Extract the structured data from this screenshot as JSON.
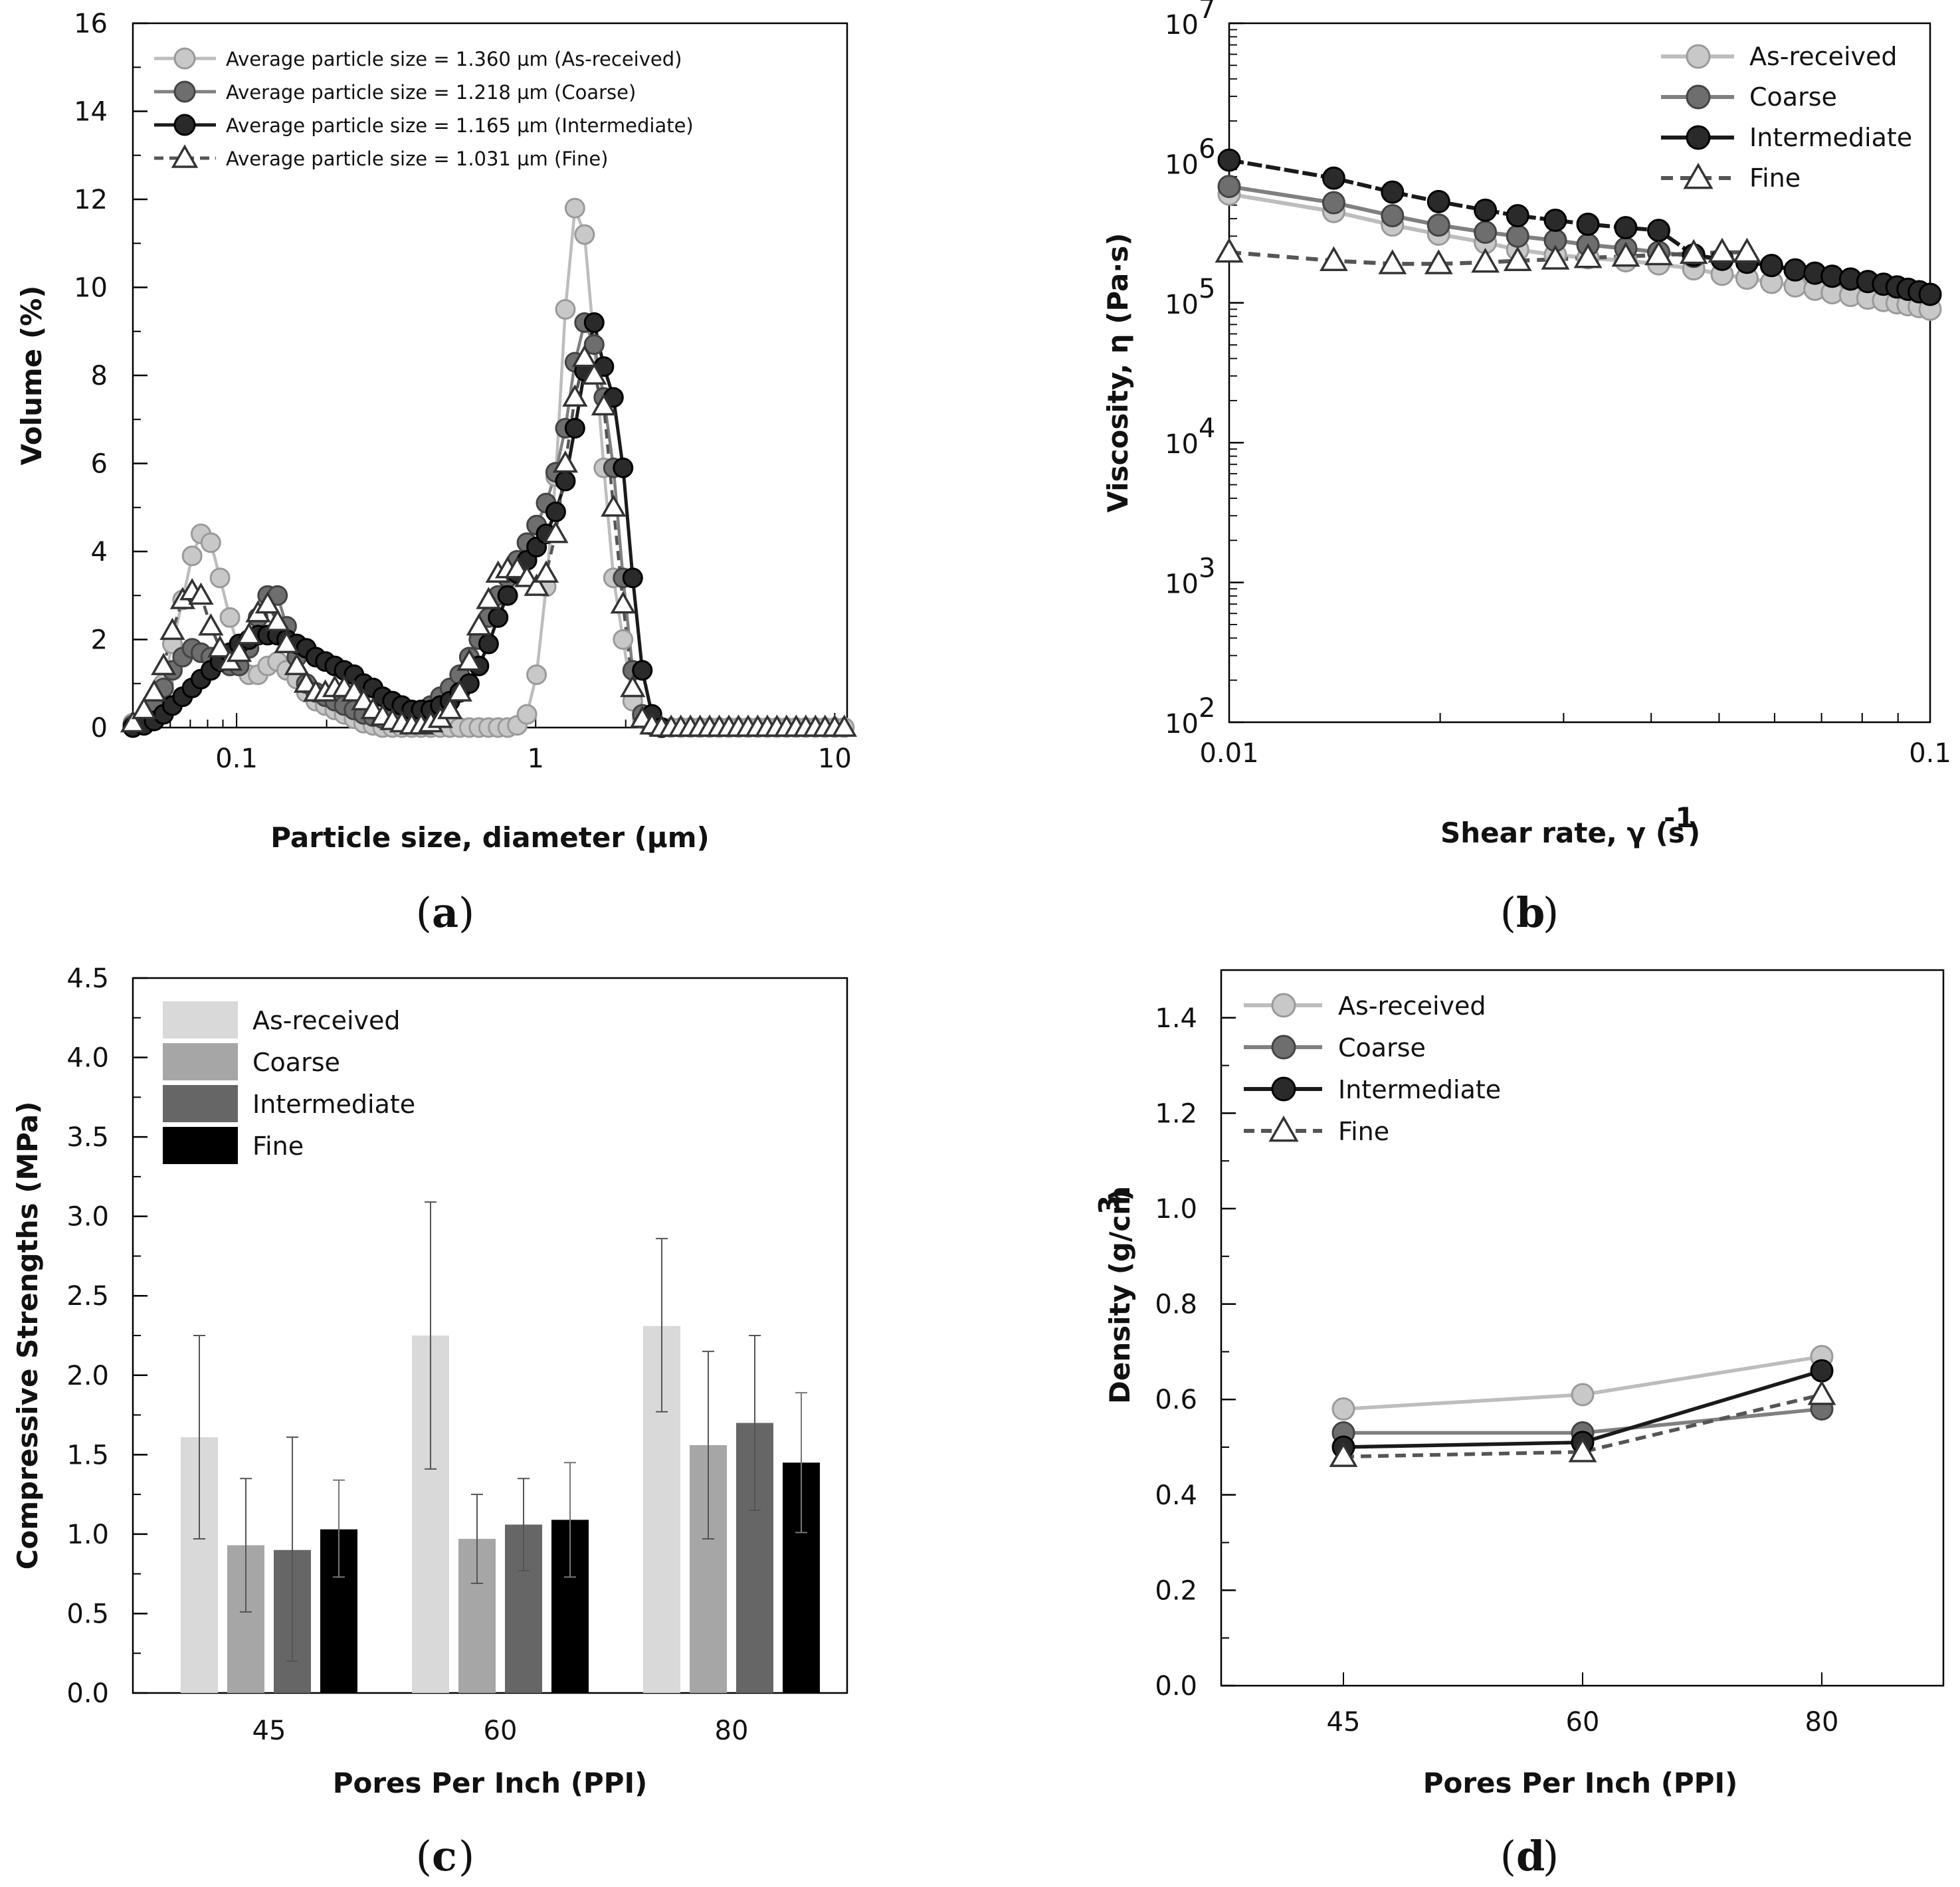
{
  "colors": {
    "as_received": "#bdbdbd",
    "coarse": "#808080",
    "intermediate": "#1a1a1a",
    "fine": "#555555",
    "bar_as_received": "#d9d9d9",
    "bar_coarse": "#a6a6a6",
    "bar_intermediate": "#666666",
    "bar_fine": "#000000"
  },
  "chart_data": [
    {
      "id": "a",
      "panel_label": "a",
      "type": "line",
      "xlabel": "Particle size, diameter (µm)",
      "ylabel": "Volume (%)",
      "x_scale": "log",
      "xlim": [
        0.045,
        11
      ],
      "ylim": [
        0,
        16
      ],
      "x_ticks": [
        0.1,
        1,
        10
      ],
      "x_tick_labels": [
        "0.1",
        "1",
        "10"
      ],
      "y_ticks": [
        0,
        2,
        4,
        6,
        8,
        10,
        12,
        14,
        16
      ],
      "y_tick_labels": [
        "0",
        "2",
        "4",
        "6",
        "8",
        "10",
        "12",
        "14",
        "16"
      ],
      "legend_position": "top-left",
      "grid": false,
      "series": [
        {
          "name": "Average particle size = 1.360 µm (As-received)",
          "style": "as_received",
          "marker": "circle",
          "dash": false,
          "x": [
            0.045,
            0.049,
            0.053,
            0.057,
            0.061,
            0.066,
            0.071,
            0.076,
            0.082,
            0.088,
            0.095,
            0.102,
            0.11,
            0.118,
            0.127,
            0.137,
            0.147,
            0.159,
            0.171,
            0.184,
            0.198,
            0.213,
            0.229,
            0.247,
            0.266,
            0.286,
            0.308,
            0.332,
            0.357,
            0.385,
            0.414,
            0.446,
            0.48,
            0.517,
            0.557,
            0.6,
            0.646,
            0.696,
            0.749,
            0.806,
            0.868,
            0.935,
            1.007,
            1.084,
            1.167,
            1.257,
            1.353,
            1.457,
            1.569,
            1.69,
            1.82,
            1.96,
            2.111,
            2.273,
            2.448,
            2.636,
            2.838,
            3.057,
            3.292,
            3.545,
            3.817,
            4.111,
            4.427,
            4.767,
            5.133,
            5.528,
            5.953,
            6.41,
            6.903,
            7.434,
            8.005,
            8.621,
            9.283,
            9.997,
            10.766
          ],
          "y": [
            0.1,
            0.2,
            0.5,
            1.0,
            1.9,
            2.9,
            3.9,
            4.4,
            4.2,
            3.4,
            2.5,
            1.7,
            1.2,
            1.2,
            1.4,
            1.5,
            1.3,
            1.1,
            0.8,
            0.6,
            0.5,
            0.4,
            0.3,
            0.2,
            0.1,
            0.05,
            0,
            0,
            0,
            0,
            0,
            0,
            0,
            0,
            0,
            0,
            0,
            0,
            0,
            0,
            0.05,
            0.3,
            1.2,
            3.2,
            5.7,
            9.5,
            11.8,
            11.2,
            8.7,
            5.9,
            3.4,
            2.0,
            0.6,
            0.2,
            0.05,
            0,
            0,
            0,
            0,
            0,
            0,
            0,
            0,
            0,
            0,
            0,
            0,
            0,
            0,
            0,
            0,
            0,
            0,
            0,
            0
          ]
        },
        {
          "name": "Average particle size =  1.218 µm (Coarse)",
          "style": "coarse",
          "marker": "circle",
          "dash": false,
          "x": [
            0.045,
            0.049,
            0.053,
            0.057,
            0.061,
            0.066,
            0.071,
            0.076,
            0.082,
            0.088,
            0.095,
            0.102,
            0.11,
            0.118,
            0.127,
            0.137,
            0.147,
            0.159,
            0.171,
            0.184,
            0.198,
            0.213,
            0.229,
            0.247,
            0.266,
            0.286,
            0.308,
            0.332,
            0.357,
            0.385,
            0.414,
            0.446,
            0.48,
            0.517,
            0.557,
            0.6,
            0.646,
            0.696,
            0.749,
            0.806,
            0.868,
            0.935,
            1.007,
            1.084,
            1.167,
            1.257,
            1.353,
            1.457,
            1.569,
            1.69,
            1.82,
            1.96,
            2.111,
            2.273,
            2.448,
            2.636
          ],
          "y": [
            0.05,
            0.2,
            0.5,
            0.9,
            1.3,
            1.6,
            1.8,
            1.7,
            1.6,
            1.5,
            1.4,
            1.4,
            1.8,
            2.5,
            3.0,
            3.0,
            2.3,
            1.6,
            1.0,
            0.8,
            0.7,
            0.6,
            0.5,
            0.4,
            0.3,
            0.25,
            0.2,
            0.2,
            0.25,
            0.3,
            0.4,
            0.5,
            0.7,
            0.9,
            1.2,
            1.6,
            2.0,
            2.5,
            3.0,
            3.4,
            3.8,
            4.2,
            4.6,
            5.1,
            5.8,
            6.8,
            8.3,
            9.2,
            8.7,
            7.5,
            5.9,
            3.4,
            1.3,
            0.3,
            0.05,
            0
          ]
        },
        {
          "name": "Average particle size = 1.165 µm (Intermediate)",
          "style": "intermediate",
          "marker": "circle",
          "dash": false,
          "x": [
            0.045,
            0.049,
            0.053,
            0.057,
            0.061,
            0.066,
            0.071,
            0.076,
            0.082,
            0.088,
            0.095,
            0.102,
            0.11,
            0.118,
            0.127,
            0.137,
            0.147,
            0.159,
            0.171,
            0.184,
            0.198,
            0.213,
            0.229,
            0.247,
            0.266,
            0.286,
            0.308,
            0.332,
            0.357,
            0.385,
            0.414,
            0.446,
            0.48,
            0.517,
            0.557,
            0.6,
            0.646,
            0.696,
            0.749,
            0.806,
            0.868,
            0.935,
            1.007,
            1.084,
            1.167,
            1.257,
            1.353,
            1.457,
            1.569,
            1.69,
            1.82,
            1.96,
            2.111,
            2.273,
            2.448,
            2.636
          ],
          "y": [
            0,
            0.05,
            0.15,
            0.3,
            0.5,
            0.7,
            0.9,
            1.1,
            1.3,
            1.5,
            1.7,
            1.9,
            2.0,
            2.1,
            2.1,
            2.1,
            2.0,
            1.9,
            1.8,
            1.6,
            1.5,
            1.4,
            1.3,
            1.2,
            1.0,
            0.9,
            0.7,
            0.6,
            0.5,
            0.4,
            0.4,
            0.4,
            0.5,
            0.6,
            0.8,
            1.0,
            1.4,
            1.9,
            2.5,
            3.0,
            3.5,
            3.8,
            4.1,
            4.4,
            4.9,
            5.6,
            6.8,
            8.1,
            9.2,
            8.2,
            7.5,
            5.9,
            3.4,
            1.3,
            0.3,
            0
          ]
        },
        {
          "name": "Average particle size = 1.031 µm (Fine)",
          "style": "fine",
          "marker": "triangle",
          "dash": true,
          "x": [
            0.045,
            0.049,
            0.053,
            0.057,
            0.061,
            0.066,
            0.071,
            0.076,
            0.082,
            0.088,
            0.095,
            0.102,
            0.11,
            0.118,
            0.127,
            0.137,
            0.147,
            0.159,
            0.171,
            0.184,
            0.198,
            0.213,
            0.229,
            0.247,
            0.266,
            0.286,
            0.308,
            0.332,
            0.357,
            0.385,
            0.414,
            0.446,
            0.48,
            0.517,
            0.557,
            0.6,
            0.646,
            0.696,
            0.749,
            0.806,
            0.868,
            0.935,
            1.007,
            1.084,
            1.167,
            1.257,
            1.353,
            1.457,
            1.569,
            1.69,
            1.82,
            1.96,
            2.111,
            2.273,
            2.448,
            2.636,
            2.838,
            3.057,
            3.292,
            3.545,
            3.817,
            4.111,
            4.427,
            4.767,
            5.133,
            5.528,
            5.953,
            6.41,
            6.903,
            7.434,
            8.005,
            8.621,
            9.283,
            9.997,
            10.766
          ],
          "y": [
            0.1,
            0.4,
            0.8,
            1.4,
            2.2,
            2.9,
            3.1,
            3.0,
            2.3,
            1.8,
            1.5,
            1.7,
            2.1,
            2.6,
            2.8,
            2.4,
            1.9,
            1.4,
            1.0,
            0.8,
            0.8,
            0.9,
            0.9,
            0.8,
            0.6,
            0.4,
            0.25,
            0.15,
            0.1,
            0.05,
            0.05,
            0.1,
            0.2,
            0.4,
            0.8,
            1.5,
            2.3,
            2.9,
            3.5,
            3.6,
            3.6,
            3.4,
            3.2,
            3.5,
            4.4,
            6.0,
            7.5,
            8.4,
            8.0,
            7.3,
            5.0,
            2.8,
            0.9,
            0.2,
            0.05,
            0,
            0,
            0,
            0,
            0,
            0,
            0,
            0,
            0,
            0,
            0,
            0,
            0,
            0,
            0,
            0,
            0,
            0,
            0,
            0
          ]
        }
      ]
    },
    {
      "id": "b",
      "panel_label": "b",
      "type": "line",
      "xlabel": "Shear rate, γ (s",
      "xlabel_sup": "-1",
      "xlabel_end": ")",
      "ylabel": "Viscosity, η (Pa·s)",
      "x_scale": "log",
      "y_scale": "log",
      "xlim": [
        0.01,
        0.1
      ],
      "ylim": [
        100,
        10000000
      ],
      "x_ticks": [
        0.01,
        0.1
      ],
      "x_tick_labels": [
        "0.01",
        "0.1"
      ],
      "y_ticks": [
        100,
        1000,
        10000,
        100000,
        1000000,
        10000000
      ],
      "y_tick_base": "10",
      "y_tick_exps": [
        "2",
        "3",
        "4",
        "5",
        "6",
        "7"
      ],
      "legend_position": "top-right",
      "grid": false,
      "series": [
        {
          "name": "As-received",
          "style": "as_received",
          "marker": "circle",
          "dash": false,
          "x": [
            0.01,
            0.0141,
            0.0171,
            0.0199,
            0.0232,
            0.0258,
            0.0292,
            0.0325,
            0.0368,
            0.041,
            0.046,
            0.0505,
            0.0548,
            0.0594,
            0.0642,
            0.0685,
            0.0725,
            0.077,
            0.0815,
            0.0858,
            0.0897,
            0.093,
            0.0965,
            0.1
          ],
          "y": [
            600000,
            450000,
            360000,
            310000,
            270000,
            240000,
            220000,
            210000,
            200000,
            190000,
            175000,
            160000,
            150000,
            140000,
            132000,
            125000,
            118000,
            113000,
            108000,
            104000,
            100000,
            97000,
            94000,
            90000
          ]
        },
        {
          "name": "Coarse",
          "style": "coarse",
          "marker": "circle",
          "dash": false,
          "x": [
            0.01,
            0.0141,
            0.0171,
            0.0199,
            0.0232,
            0.0258,
            0.0292,
            0.0325,
            0.0368,
            0.041,
            0.046,
            0.0505,
            0.0548,
            0.0594,
            0.0642,
            0.0685,
            0.0725,
            0.077,
            0.0815,
            0.0858,
            0.0897,
            0.093,
            0.0965,
            0.1
          ],
          "y": [
            680000,
            520000,
            420000,
            360000,
            320000,
            300000,
            280000,
            260000,
            245000,
            230000,
            215000,
            205000,
            195000,
            185000,
            172000,
            163000,
            155000,
            148000,
            142000,
            136000,
            130000,
            125000,
            120000,
            115000
          ]
        },
        {
          "name": "Intermediate",
          "style": "intermediate",
          "marker": "circle",
          "dash": false,
          "x": [
            0.01,
            0.0141,
            0.0171,
            0.0199,
            0.0232,
            0.0258,
            0.0292,
            0.0325,
            0.0368,
            0.041,
            0.046,
            0.0505,
            0.0548,
            0.0594,
            0.0642,
            0.0685,
            0.0725,
            0.077,
            0.0815,
            0.0858,
            0.0897,
            0.093,
            0.0965,
            0.1
          ],
          "y": [
            1050000,
            780000,
            620000,
            530000,
            460000,
            420000,
            390000,
            365000,
            345000,
            330000,
            220000,
            205000,
            195000,
            185000,
            172000,
            163000,
            155000,
            148000,
            142000,
            136000,
            130000,
            125000,
            120000,
            115000
          ]
        },
        {
          "name": "Fine",
          "style": "fine",
          "marker": "triangle",
          "dash": true,
          "x": [
            0.01,
            0.0141,
            0.0171,
            0.0199,
            0.0232,
            0.0258,
            0.0292,
            0.0325,
            0.0368,
            0.041,
            0.046,
            0.0505,
            0.0548
          ],
          "y": [
            230000,
            200000,
            190000,
            190000,
            195000,
            200000,
            205000,
            210000,
            215000,
            220000,
            225000,
            230000,
            230000
          ]
        }
      ]
    },
    {
      "id": "c",
      "panel_label": "c",
      "type": "bar",
      "xlabel": "Pores Per Inch (PPI)",
      "ylabel": "Compressive Strengths (MPa)",
      "categories": [
        "45",
        "60",
        "80"
      ],
      "ylim": [
        0,
        4.5
      ],
      "y_ticks": [
        0,
        0.5,
        1.0,
        1.5,
        2.0,
        2.5,
        3.0,
        3.5,
        4.0,
        4.5
      ],
      "y_tick_labels": [
        "0.0",
        "0.5",
        "1.0",
        "1.5",
        "2.0",
        "2.5",
        "3.0",
        "3.5",
        "4.0",
        "4.5"
      ],
      "legend_position": "top-left",
      "grid": false,
      "series": [
        {
          "name": "As-received",
          "style": "bar_as_received",
          "values": [
            1.61,
            2.25,
            2.31
          ],
          "err_low": [
            0.97,
            1.41,
            1.77
          ],
          "err_high": [
            2.25,
            3.09,
            2.86
          ]
        },
        {
          "name": "Coarse",
          "style": "bar_coarse",
          "values": [
            0.93,
            0.97,
            1.56
          ],
          "err_low": [
            0.51,
            0.69,
            0.97
          ],
          "err_high": [
            1.35,
            1.25,
            2.15
          ]
        },
        {
          "name": "Intermediate",
          "style": "bar_intermediate",
          "values": [
            0.9,
            1.06,
            1.7
          ],
          "err_low": [
            0.2,
            0.77,
            1.15
          ],
          "err_high": [
            1.61,
            1.35,
            2.25
          ]
        },
        {
          "name": "Fine",
          "style": "bar_fine",
          "values": [
            1.03,
            1.09,
            1.45
          ],
          "err_low": [
            0.73,
            0.73,
            1.01
          ],
          "err_high": [
            1.34,
            1.45,
            1.89
          ]
        }
      ]
    },
    {
      "id": "d",
      "panel_label": "d",
      "type": "line",
      "xlabel": "Pores Per Inch (PPI)",
      "ylabel": "Density (g/cm",
      "ylabel_sup": "3",
      "ylabel_end": ")",
      "categories": [
        "45",
        "60",
        "80"
      ],
      "ylim": [
        0,
        1.5
      ],
      "y_ticks": [
        0,
        0.2,
        0.4,
        0.6,
        0.8,
        1.0,
        1.2,
        1.4
      ],
      "y_tick_labels": [
        "0.0",
        "0.2",
        "0.4",
        "0.6",
        "0.8",
        "1.0",
        "1.2",
        "1.4"
      ],
      "legend_position": "top-left",
      "grid": false,
      "series": [
        {
          "name": "As-received",
          "style": "as_received",
          "marker": "circle",
          "dash": false,
          "values": [
            0.58,
            0.61,
            0.69
          ]
        },
        {
          "name": "Coarse",
          "style": "coarse",
          "marker": "circle",
          "dash": false,
          "values": [
            0.53,
            0.53,
            0.58
          ]
        },
        {
          "name": "Intermediate",
          "style": "intermediate",
          "marker": "circle",
          "dash": false,
          "values": [
            0.5,
            0.51,
            0.66
          ]
        },
        {
          "name": "Fine",
          "style": "fine",
          "marker": "triangle",
          "dash": true,
          "values": [
            0.48,
            0.49,
            0.61
          ]
        }
      ]
    }
  ]
}
